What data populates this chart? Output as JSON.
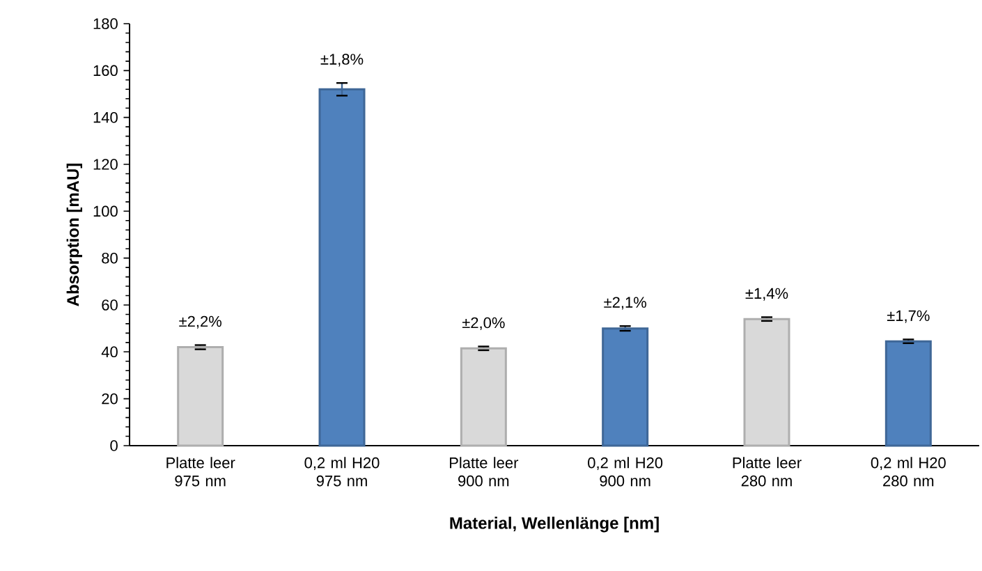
{
  "chart_data": {
    "type": "bar",
    "xlabel": "Material, Wellenlänge [nm]",
    "ylabel": "Absorption [mAU]",
    "categories": [
      "Platte leer 975 nm",
      "0,2 ml H20 975 nm",
      "Platte leer 900 nm",
      "0,2 ml H20 900 nm",
      "Platte leer 280 nm",
      "0,2 ml H20 280 nm"
    ],
    "values": [
      42,
      152,
      41.5,
      50,
      54,
      44.5
    ],
    "errors": [
      0.9,
      2.7,
      0.8,
      1.0,
      0.8,
      0.8
    ],
    "annotations": [
      {
        "text": "±2,2%",
        "x": "Platte leer 975 nm",
        "y": 42.9
      },
      {
        "text": "±1,8%",
        "x": "0,2 ml H20 975 nm",
        "y": 154.7
      },
      {
        "text": "±2,0%",
        "x": "Platte leer 900 nm",
        "y": 42.3
      },
      {
        "text": "±2,1%",
        "x": "0,2 ml H20 900 nm",
        "y": 51
      },
      {
        "text": "±1,4%",
        "x": "Platte leer 280 nm",
        "y": 54.8
      },
      {
        "text": "±1,7%",
        "x": "0,2 ml H20 280 nm",
        "y": 45.3
      }
    ],
    "colors": [
      "#d9d9d9",
      "#4f81bd",
      "#d9d9d9",
      "#4f81bd",
      "#d9d9d9",
      "#4f81bd"
    ],
    "ylim": [
      0,
      180
    ],
    "yticks": [
      0,
      20,
      40,
      60,
      80,
      100,
      120,
      140,
      160,
      180
    ],
    "grid": false
  }
}
